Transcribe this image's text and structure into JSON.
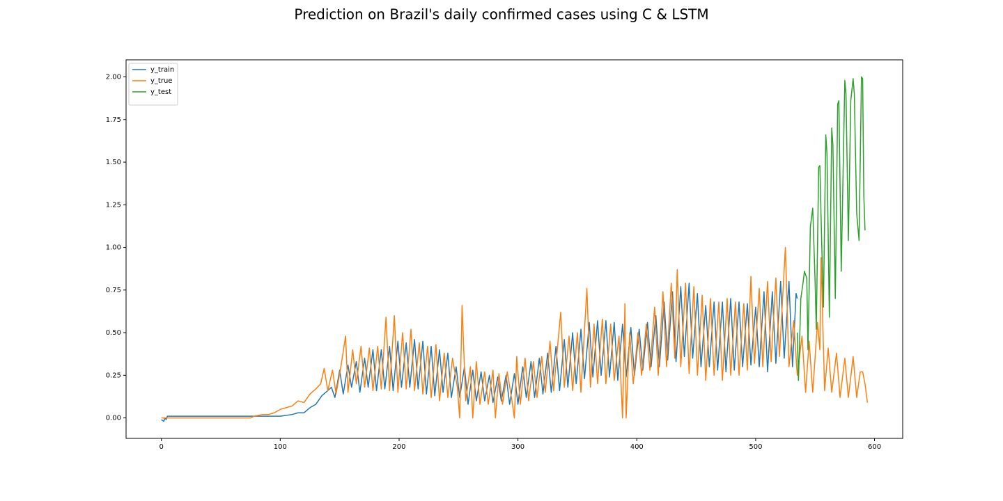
{
  "chart_data": {
    "type": "line",
    "title": "Prediction on Brazil's daily confirmed cases using C & LSTM",
    "xlim": [
      -29.7,
      623.7
    ],
    "xticks": [
      0,
      100,
      200,
      300,
      400,
      500,
      600
    ],
    "ylim": [
      -0.12,
      2.1
    ],
    "yticks": [
      {
        "value": 0,
        "label": "0.00"
      },
      {
        "value": 0.25,
        "label": "0.25"
      },
      {
        "value": 0.5,
        "label": "0.50"
      },
      {
        "value": 0.75,
        "label": "0.75"
      },
      {
        "value": 1,
        "label": "1.00"
      },
      {
        "value": 1.25,
        "label": "1.25"
      },
      {
        "value": 1.5,
        "label": "1.50"
      },
      {
        "value": 1.75,
        "label": "1.75"
      },
      {
        "value": 2,
        "label": "2.00"
      }
    ],
    "grid": false,
    "legend": "upper left",
    "series": [
      {
        "name": "y_train",
        "color": "#1f77b4",
        "x": [
          0,
          2,
          3,
          4,
          5,
          100,
          110,
          115,
          120,
          125,
          130,
          135,
          140,
          143,
          146,
          150,
          153,
          157,
          160,
          164,
          167,
          171,
          174,
          178,
          181,
          185,
          188,
          192,
          195,
          199,
          202,
          206,
          209,
          213,
          216,
          220,
          223,
          227,
          230,
          234,
          237,
          241,
          244,
          248,
          251,
          255,
          258,
          262,
          265,
          269,
          272,
          276,
          279,
          283,
          286,
          290,
          293,
          297,
          300,
          304,
          307,
          311,
          314,
          318,
          321,
          325,
          328,
          332,
          335,
          339,
          342,
          346,
          349,
          353,
          356,
          360,
          363,
          367,
          370,
          374,
          377,
          381,
          384,
          388,
          391,
          395,
          398,
          402,
          405,
          409,
          412,
          416,
          419,
          423,
          426,
          430,
          433,
          437,
          440,
          444,
          447,
          451,
          454,
          458,
          461,
          465,
          468,
          472,
          475,
          479,
          482,
          486,
          489,
          493,
          496,
          500,
          503,
          507,
          510,
          514,
          517,
          521,
          524,
          528,
          531,
          534,
          535
        ],
        "values": [
          -0.01,
          -0.02,
          0.0,
          -0.01,
          0.01,
          0.01,
          0.02,
          0.03,
          0.03,
          0.06,
          0.08,
          0.13,
          0.16,
          0.18,
          0.12,
          0.28,
          0.14,
          0.31,
          0.18,
          0.33,
          0.15,
          0.35,
          0.18,
          0.4,
          0.16,
          0.4,
          0.17,
          0.42,
          0.16,
          0.45,
          0.18,
          0.44,
          0.18,
          0.46,
          0.17,
          0.45,
          0.14,
          0.42,
          0.13,
          0.4,
          0.15,
          0.38,
          0.12,
          0.3,
          0.12,
          0.3,
          0.08,
          0.28,
          0.1,
          0.27,
          0.1,
          0.25,
          0.09,
          0.24,
          0.1,
          0.25,
          0.08,
          0.26,
          0.08,
          0.3,
          0.12,
          0.33,
          0.12,
          0.35,
          0.14,
          0.38,
          0.15,
          0.42,
          0.16,
          0.46,
          0.18,
          0.5,
          0.2,
          0.52,
          0.23,
          0.56,
          0.24,
          0.57,
          0.25,
          0.57,
          0.24,
          0.56,
          0.22,
          0.55,
          0.24,
          0.53,
          0.25,
          0.52,
          0.28,
          0.56,
          0.3,
          0.6,
          0.3,
          0.68,
          0.34,
          0.74,
          0.33,
          0.77,
          0.36,
          0.79,
          0.35,
          0.73,
          0.3,
          0.66,
          0.3,
          0.68,
          0.28,
          0.68,
          0.27,
          0.7,
          0.28,
          0.68,
          0.3,
          0.67,
          0.31,
          0.65,
          0.3,
          0.74,
          0.27,
          0.74,
          0.32,
          0.8,
          0.35,
          0.8,
          0.3,
          0.73,
          0.7
        ]
      },
      {
        "name": "y_true",
        "color": "#ff7f0e",
        "x": [
          0,
          75,
          78,
          85,
          90,
          95,
          100,
          105,
          110,
          115,
          120,
          125,
          130,
          134,
          137,
          140,
          144,
          147,
          151,
          155,
          157,
          161,
          164,
          168,
          171,
          175,
          178,
          182,
          185,
          189,
          192,
          196,
          199,
          203,
          206,
          210,
          213,
          217,
          220,
          224,
          227,
          231,
          234,
          238,
          241,
          245,
          249,
          251,
          253,
          256,
          260,
          262,
          265,
          268,
          272,
          275,
          279,
          281,
          284,
          287,
          291,
          295,
          297,
          299,
          302,
          306,
          309,
          313,
          316,
          320,
          323,
          327,
          330,
          334,
          336,
          339,
          343,
          346,
          350,
          353,
          358,
          361,
          364,
          367,
          371,
          374,
          378,
          381,
          385,
          388,
          390,
          391,
          394,
          397,
          401,
          404,
          408,
          411,
          415,
          418,
          422,
          425,
          429,
          432,
          434,
          437,
          441,
          444,
          448,
          451,
          455,
          458,
          462,
          465,
          469,
          472,
          476,
          479,
          483,
          486,
          490,
          493,
          496,
          499,
          503,
          506,
          510,
          513,
          517,
          520,
          525,
          528,
          532,
          535,
          539,
          542,
          545,
          548,
          552,
          554,
          555,
          558,
          561,
          564,
          568,
          571,
          575,
          578,
          582,
          585,
          588,
          590,
          592,
          594
        ],
        "values": [
          0.0,
          0.0,
          0.01,
          0.02,
          0.02,
          0.03,
          0.05,
          0.06,
          0.07,
          0.1,
          0.09,
          0.14,
          0.17,
          0.2,
          0.29,
          0.16,
          0.28,
          0.14,
          0.3,
          0.48,
          0.15,
          0.4,
          0.2,
          0.42,
          0.18,
          0.41,
          0.16,
          0.42,
          0.17,
          0.59,
          0.16,
          0.6,
          0.15,
          0.5,
          0.17,
          0.52,
          0.16,
          0.44,
          0.14,
          0.42,
          0.12,
          0.43,
          0.1,
          0.38,
          0.12,
          0.35,
          0.18,
          0.0,
          0.66,
          0.1,
          0.3,
          0.0,
          0.33,
          0.08,
          0.27,
          0.08,
          0.28,
          0.0,
          0.26,
          0.08,
          0.27,
          0.1,
          0.0,
          0.36,
          0.08,
          0.35,
          0.1,
          0.33,
          0.12,
          0.36,
          0.15,
          0.45,
          0.16,
          0.47,
          0.62,
          0.18,
          0.48,
          0.16,
          0.5,
          0.15,
          0.76,
          0.18,
          0.55,
          0.2,
          0.58,
          0.2,
          0.55,
          0.22,
          0.48,
          0.0,
          0.67,
          0.0,
          0.5,
          0.2,
          0.5,
          0.25,
          0.55,
          0.28,
          0.65,
          0.25,
          0.74,
          0.3,
          0.79,
          0.35,
          0.87,
          0.3,
          0.79,
          0.26,
          0.77,
          0.25,
          0.72,
          0.22,
          0.7,
          0.25,
          0.68,
          0.22,
          0.7,
          0.25,
          0.68,
          0.25,
          0.67,
          0.28,
          0.83,
          0.32,
          0.76,
          0.3,
          0.8,
          0.33,
          0.82,
          0.36,
          1.0,
          0.3,
          0.57,
          0.25,
          0.48,
          0.15,
          0.45,
          0.15,
          0.56,
          0.4,
          0.94,
          0.16,
          0.41,
          0.15,
          0.38,
          0.12,
          0.35,
          0.12,
          0.36,
          0.12,
          0.27,
          0.27,
          0.2,
          0.09
        ]
      },
      {
        "name": "y_test",
        "color": "#2ca02c",
        "x": [
          535,
          536,
          538,
          540,
          541,
          543,
          544,
          546,
          548,
          550,
          551,
          553,
          554,
          556,
          557,
          559,
          560,
          562,
          564,
          565,
          567,
          569,
          570,
          572,
          575,
          576,
          578,
          580,
          582,
          583,
          585,
          587,
          589,
          590,
          591,
          592
        ],
        "values": [
          0.5,
          0.22,
          0.7,
          0.8,
          0.86,
          0.82,
          0.4,
          1.12,
          1.23,
          0.8,
          0.52,
          1.47,
          1.48,
          0.9,
          0.65,
          1.66,
          1.55,
          0.59,
          1.7,
          1.6,
          0.7,
          1.84,
          1.86,
          0.86,
          1.98,
          1.9,
          1.04,
          1.86,
          1.99,
          1.9,
          1.2,
          1.04,
          2.0,
          1.99,
          1.3,
          1.1
        ]
      }
    ]
  }
}
